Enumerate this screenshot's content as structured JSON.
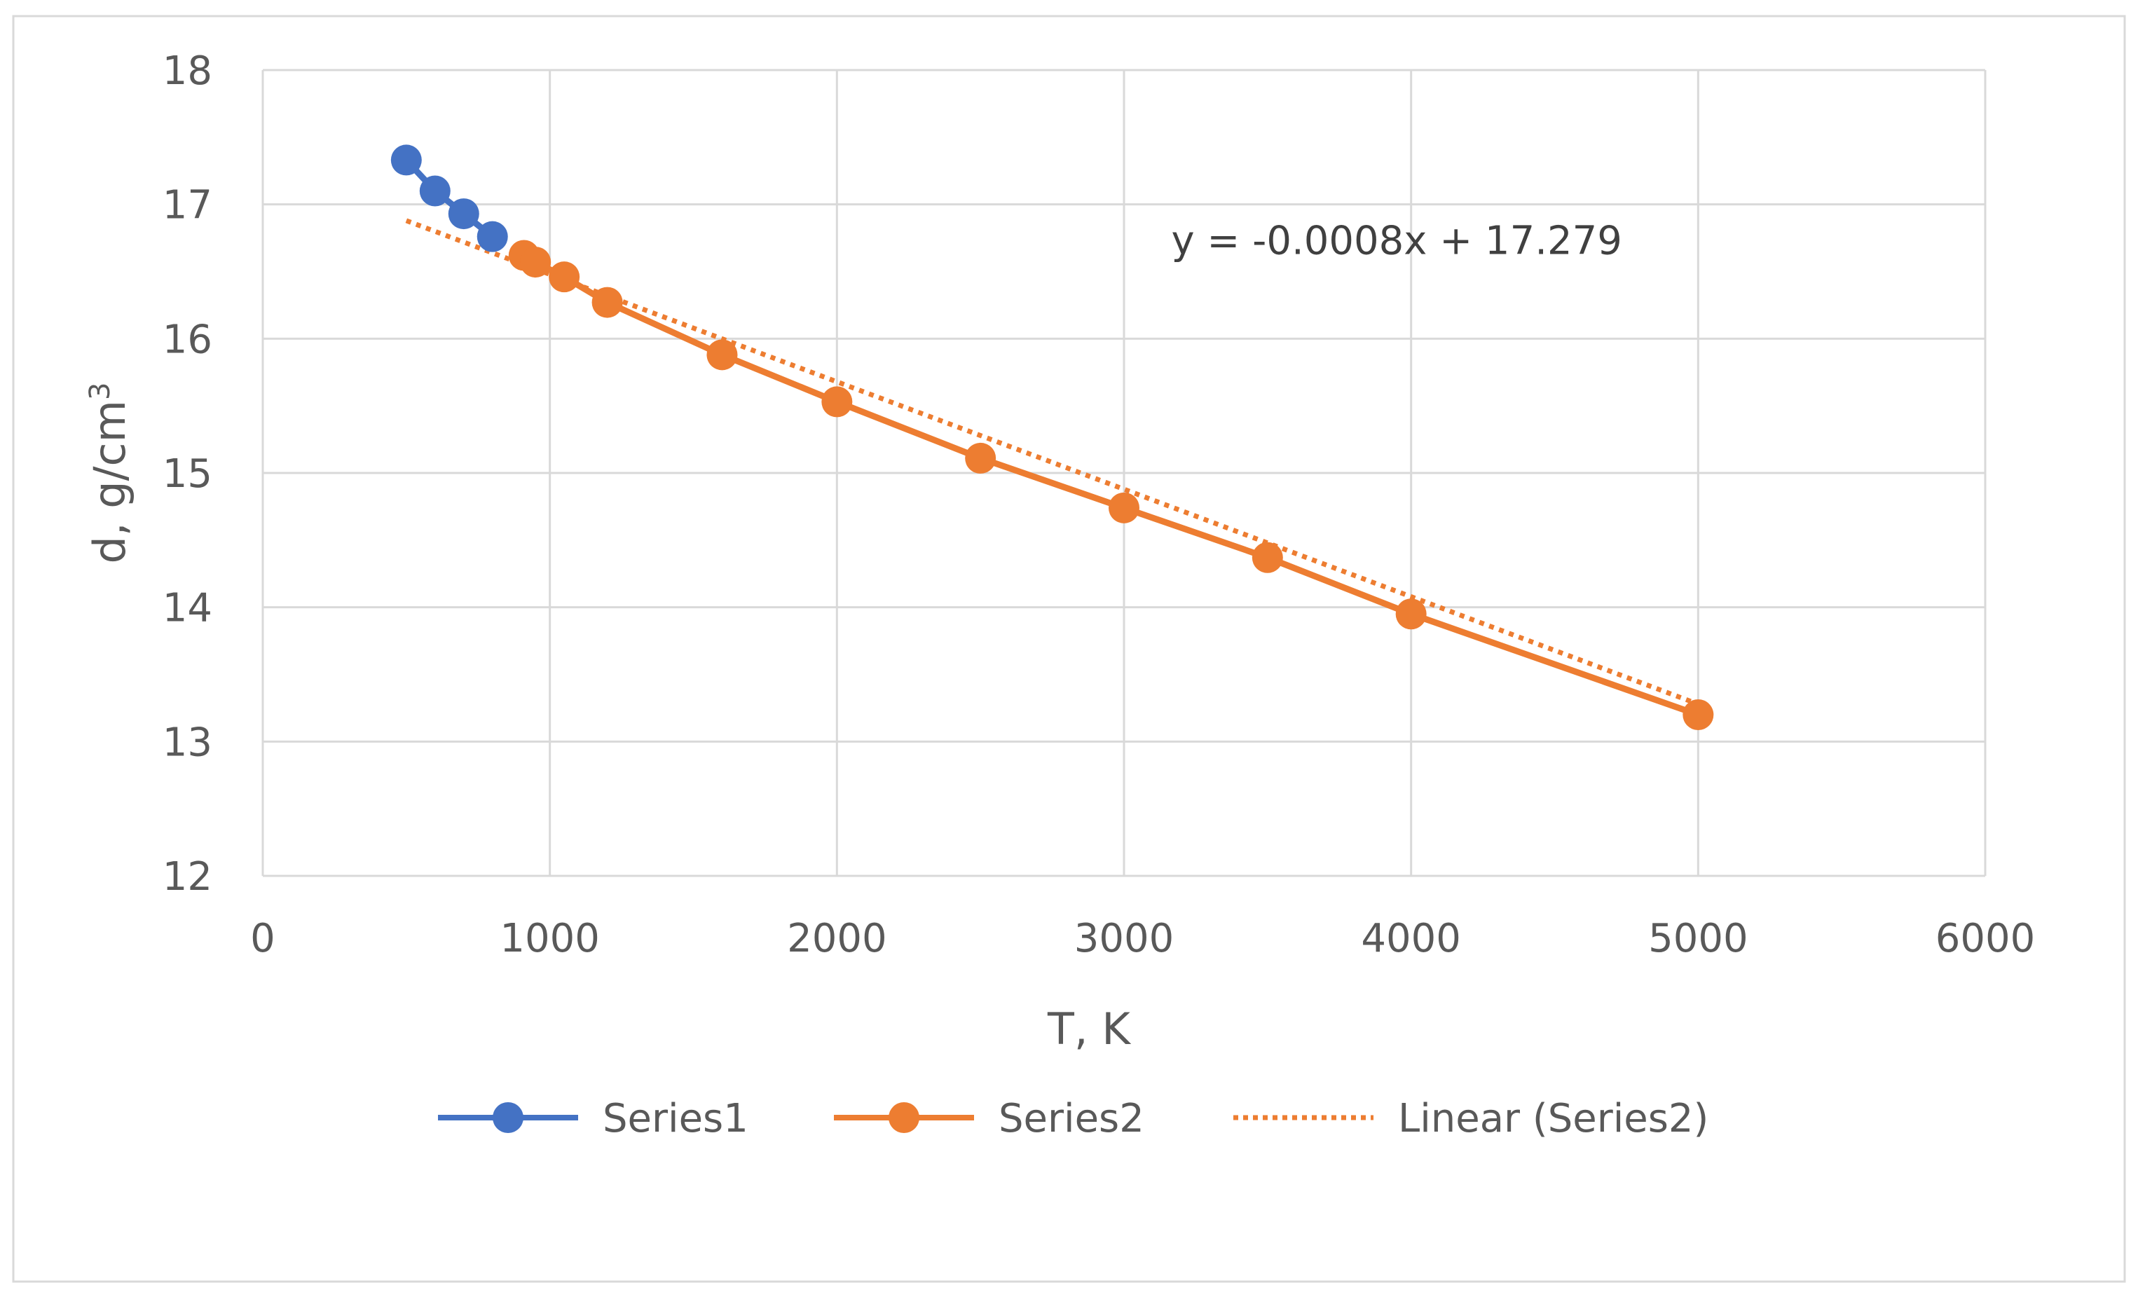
{
  "chart_data": {
    "type": "scatter",
    "title": "",
    "xlabel": "T, K",
    "ylabel_main": "d, g/cm",
    "ylabel_sup": "3",
    "xlim": [
      0,
      6000
    ],
    "ylim": [
      12,
      18
    ],
    "x_ticks": [
      0,
      1000,
      2000,
      3000,
      4000,
      5000,
      6000
    ],
    "y_ticks": [
      12,
      13,
      14,
      15,
      16,
      17,
      18
    ],
    "grid": true,
    "legend_position": "bottom",
    "series": [
      {
        "name": "Series1",
        "color": "#4472C4",
        "style": "line-markers",
        "x": [
          500,
          600,
          700,
          800
        ],
        "y": [
          17.33,
          17.1,
          16.93,
          16.76
        ]
      },
      {
        "name": "Series2",
        "color": "#ED7D31",
        "style": "line-markers",
        "x": [
          910,
          950,
          1050,
          1200,
          1600,
          2000,
          2500,
          3000,
          3500,
          4000,
          5000
        ],
        "y": [
          16.62,
          16.57,
          16.46,
          16.27,
          15.88,
          15.53,
          15.11,
          14.74,
          14.37,
          13.95,
          13.2
        ]
      }
    ],
    "trendline": {
      "name": "Linear (Series2)",
      "color": "#ED7D31",
      "style": "dotted",
      "slope": -0.0008,
      "intercept": 17.279,
      "x_range": [
        500,
        5000
      ],
      "equation": "y = -0.0008x + 17.279",
      "equation_x": 3950,
      "equation_y": 16.63
    }
  }
}
